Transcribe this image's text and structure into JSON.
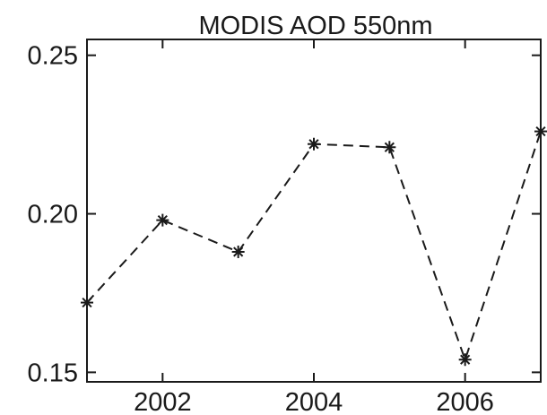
{
  "chart_data": {
    "type": "line",
    "title": "MODIS AOD 550nm",
    "xlabel": "",
    "ylabel": "",
    "xlim": [
      2001,
      2007
    ],
    "ylim": [
      0.147,
      0.255
    ],
    "x_ticks": [
      2002,
      2004,
      2006
    ],
    "x_tick_labels": [
      "2002",
      "2004",
      "2006"
    ],
    "y_ticks": [
      0.15,
      0.2,
      0.25
    ],
    "y_tick_labels": [
      "0.15",
      "0.20",
      "0.25"
    ],
    "grid": false,
    "line_style": "dashed",
    "marker": "asterisk",
    "color": "#1a1a1a",
    "series": [
      {
        "x": [
          2001,
          2002,
          2003,
          2004,
          2005,
          2006,
          2007
        ],
        "y": [
          0.172,
          0.198,
          0.188,
          0.222,
          0.221,
          0.154,
          0.226
        ]
      }
    ]
  }
}
